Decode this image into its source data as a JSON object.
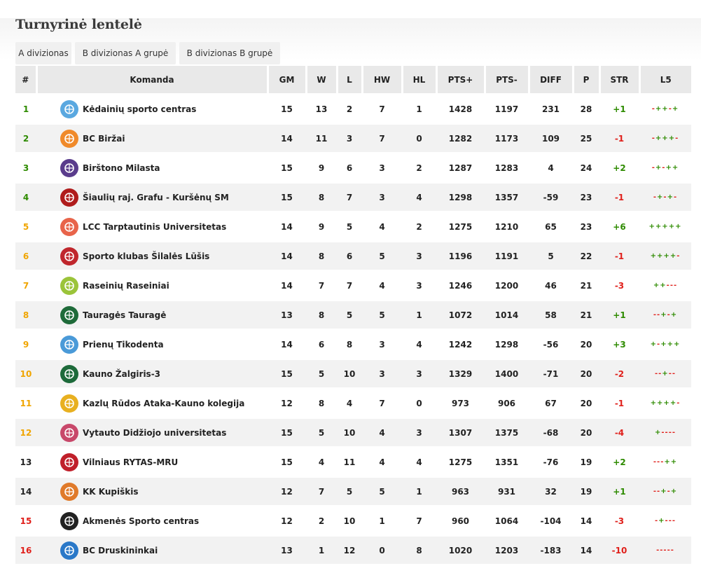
{
  "title": "Turnyrinė lentelė",
  "tabs": [
    "A divizionas",
    "B divizionas A grupė",
    "B divizionas B grupė"
  ],
  "columns": [
    "#",
    "Komanda",
    "GM",
    "W",
    "L",
    "HW",
    "HL",
    "PTS+",
    "PTS-",
    "DIFF",
    "P",
    "STR",
    "L5"
  ],
  "colors": {
    "pos_green": "#2e8b00",
    "pos_orange": "#f0a500",
    "pos_black": "#222222",
    "pos_red": "#e0201b",
    "str_positive": "#2e8b00",
    "str_negative": "#e0201b"
  },
  "rows": [
    {
      "pos": "1",
      "team": "Kėdainių sporto centras",
      "gm": "15",
      "w": "13",
      "l": "2",
      "hw": "7",
      "hl": "1",
      "pts_plus": "1428",
      "pts_minus": "1197",
      "diff": "231",
      "p": "28",
      "str": "+1",
      "l5": "-++-+",
      "pos_color": "#2e8b00",
      "str_color": "#2e8b00",
      "logo_color": "#5aa8e0",
      "logo_icon": "kedainiai-logo-icon"
    },
    {
      "pos": "2",
      "team": "BC Biržai",
      "gm": "14",
      "w": "11",
      "l": "3",
      "hw": "7",
      "hl": "0",
      "pts_plus": "1282",
      "pts_minus": "1173",
      "diff": "109",
      "p": "25",
      "str": "-1",
      "l5": "-+++-",
      "pos_color": "#2e8b00",
      "str_color": "#e0201b",
      "logo_color": "#f08a2a",
      "logo_icon": "birzai-logo-icon"
    },
    {
      "pos": "3",
      "team": "Birštono Milasta",
      "gm": "15",
      "w": "9",
      "l": "6",
      "hw": "3",
      "hl": "2",
      "pts_plus": "1287",
      "pts_minus": "1283",
      "diff": "4",
      "p": "24",
      "str": "+2",
      "l5": "-+-++",
      "pos_color": "#2e8b00",
      "str_color": "#2e8b00",
      "logo_color": "#5a3c8c",
      "logo_icon": "birstonas-logo-icon"
    },
    {
      "pos": "4",
      "team": "Šiaulių raj. Grafu - Kuršėnų SM",
      "gm": "15",
      "w": "8",
      "l": "7",
      "hw": "3",
      "hl": "4",
      "pts_plus": "1298",
      "pts_minus": "1357",
      "diff": "-59",
      "p": "23",
      "str": "-1",
      "l5": "-+-+-",
      "pos_color": "#2e8b00",
      "str_color": "#e0201b",
      "logo_color": "#b01c1c",
      "logo_icon": "grafu-logo-icon"
    },
    {
      "pos": "5",
      "team": "LCC Tarptautinis Universitetas",
      "gm": "14",
      "w": "9",
      "l": "5",
      "hw": "4",
      "hl": "2",
      "pts_plus": "1275",
      "pts_minus": "1210",
      "diff": "65",
      "p": "23",
      "str": "+6",
      "l5": "+++++",
      "pos_color": "#f0a500",
      "str_color": "#2e8b00",
      "logo_color": "#e8644a",
      "logo_icon": "lcc-logo-icon"
    },
    {
      "pos": "6",
      "team": "Sporto klubas Šilalės Lūšis",
      "gm": "14",
      "w": "8",
      "l": "6",
      "hw": "5",
      "hl": "3",
      "pts_plus": "1196",
      "pts_minus": "1191",
      "diff": "5",
      "p": "22",
      "str": "-1",
      "l5": "++++-",
      "pos_color": "#f0a500",
      "str_color": "#e0201b",
      "logo_color": "#c0272d",
      "logo_icon": "silale-logo-icon"
    },
    {
      "pos": "7",
      "team": "Raseinių Raseiniai",
      "gm": "14",
      "w": "7",
      "l": "7",
      "hw": "4",
      "hl": "3",
      "pts_plus": "1246",
      "pts_minus": "1200",
      "diff": "46",
      "p": "21",
      "str": "-3",
      "l5": "++---",
      "pos_color": "#f0a500",
      "str_color": "#e0201b",
      "logo_color": "#9bc43a",
      "logo_icon": "raseiniai-logo-icon"
    },
    {
      "pos": "8",
      "team": "Tauragės Tauragė",
      "gm": "13",
      "w": "8",
      "l": "5",
      "hw": "5",
      "hl": "1",
      "pts_plus": "1072",
      "pts_minus": "1014",
      "diff": "58",
      "p": "21",
      "str": "+1",
      "l5": "--+-+",
      "pos_color": "#f0a500",
      "str_color": "#2e8b00",
      "logo_color": "#1f6b3a",
      "logo_icon": "taurage-logo-icon"
    },
    {
      "pos": "9",
      "team": "Prienų Tikodenta",
      "gm": "14",
      "w": "6",
      "l": "8",
      "hw": "3",
      "hl": "4",
      "pts_plus": "1242",
      "pts_minus": "1298",
      "diff": "-56",
      "p": "20",
      "str": "+3",
      "l5": "+-+++",
      "pos_color": "#f0a500",
      "str_color": "#2e8b00",
      "logo_color": "#4a9ad8",
      "logo_icon": "prienai-logo-icon"
    },
    {
      "pos": "10",
      "team": "Kauno Žalgiris-3",
      "gm": "15",
      "w": "5",
      "l": "10",
      "hw": "3",
      "hl": "3",
      "pts_plus": "1329",
      "pts_minus": "1400",
      "diff": "-71",
      "p": "20",
      "str": "-2",
      "l5": "--+--",
      "pos_color": "#f0a500",
      "str_color": "#e0201b",
      "logo_color": "#1d6a3a",
      "logo_icon": "zalgiris-logo-icon"
    },
    {
      "pos": "11",
      "team": "Kazlų Rūdos Ataka-Kauno kolegija",
      "gm": "12",
      "w": "8",
      "l": "4",
      "hw": "7",
      "hl": "0",
      "pts_plus": "973",
      "pts_minus": "906",
      "diff": "67",
      "p": "20",
      "str": "-1",
      "l5": "++++-",
      "pos_color": "#f0a500",
      "str_color": "#e0201b",
      "logo_color": "#e8b020",
      "logo_icon": "ataka-logo-icon"
    },
    {
      "pos": "12",
      "team": "Vytauto Didžiojo universitetas",
      "gm": "15",
      "w": "5",
      "l": "10",
      "hw": "4",
      "hl": "3",
      "pts_plus": "1307",
      "pts_minus": "1375",
      "diff": "-68",
      "p": "20",
      "str": "-4",
      "l5": "+----",
      "pos_color": "#f0a500",
      "str_color": "#e0201b",
      "logo_color": "#c8486a",
      "logo_icon": "vdu-logo-icon"
    },
    {
      "pos": "13",
      "team": "Vilniaus RYTAS-MRU",
      "gm": "15",
      "w": "4",
      "l": "11",
      "hw": "4",
      "hl": "4",
      "pts_plus": "1275",
      "pts_minus": "1351",
      "diff": "-76",
      "p": "19",
      "str": "+2",
      "l5": "---++",
      "pos_color": "#222222",
      "str_color": "#2e8b00",
      "logo_color": "#c01f2a",
      "logo_icon": "rytas-logo-icon"
    },
    {
      "pos": "14",
      "team": "KK Kupiškis",
      "gm": "12",
      "w": "7",
      "l": "5",
      "hw": "5",
      "hl": "1",
      "pts_plus": "963",
      "pts_minus": "931",
      "diff": "32",
      "p": "19",
      "str": "+1",
      "l5": "--+-+",
      "pos_color": "#222222",
      "str_color": "#2e8b00",
      "logo_color": "#e07a2a",
      "logo_icon": "kupiskis-logo-icon"
    },
    {
      "pos": "15",
      "team": "Akmenės Sporto centras",
      "gm": "12",
      "w": "2",
      "l": "10",
      "hw": "1",
      "hl": "7",
      "pts_plus": "960",
      "pts_minus": "1064",
      "diff": "-104",
      "p": "14",
      "str": "-3",
      "l5": "-+---",
      "pos_color": "#e0201b",
      "str_color": "#e0201b",
      "logo_color": "#222222",
      "logo_icon": "akmene-logo-icon"
    },
    {
      "pos": "16",
      "team": "BC Druskininkai",
      "gm": "13",
      "w": "1",
      "l": "12",
      "hw": "0",
      "hl": "8",
      "pts_plus": "1020",
      "pts_minus": "1203",
      "diff": "-183",
      "p": "14",
      "str": "-10",
      "l5": "-----",
      "pos_color": "#e0201b",
      "str_color": "#e0201b",
      "logo_color": "#2a78c8",
      "logo_icon": "druskininkai-logo-icon"
    }
  ]
}
